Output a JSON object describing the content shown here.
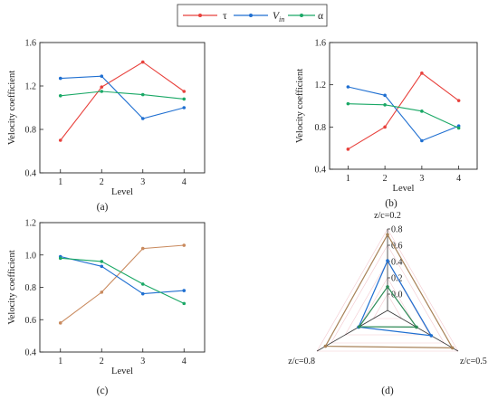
{
  "legend": {
    "items": [
      {
        "label": "τ",
        "color": "#e8413c"
      },
      {
        "label": "V",
        "sub": "in",
        "color": "#1f6fd1"
      },
      {
        "label": "α",
        "color": "#1aa866"
      }
    ]
  },
  "chart_data": [
    {
      "type": "line",
      "panel_label": "(a)",
      "xlabel": "Level",
      "ylabel": "Velocity coefficient",
      "x": [
        1,
        2,
        3,
        4
      ],
      "ylim": [
        0.4,
        1.6
      ],
      "yticks": [
        0.4,
        0.8,
        1.2,
        1.6
      ],
      "series": [
        {
          "name": "τ",
          "color": "#e8413c",
          "values": [
            0.7,
            1.19,
            1.42,
            1.15
          ]
        },
        {
          "name": "Vin",
          "color": "#1f6fd1",
          "values": [
            1.27,
            1.29,
            0.9,
            1.0
          ]
        },
        {
          "name": "α",
          "color": "#1aa866",
          "values": [
            1.11,
            1.15,
            1.12,
            1.08
          ]
        }
      ]
    },
    {
      "type": "line",
      "panel_label": "(b)",
      "xlabel": "Level",
      "ylabel": "Velocity coefficient",
      "x": [
        1,
        2,
        3,
        4
      ],
      "ylim": [
        0.4,
        1.6
      ],
      "yticks": [
        0.4,
        0.8,
        1.2,
        1.6
      ],
      "series": [
        {
          "name": "τ",
          "color": "#e8413c",
          "values": [
            0.59,
            0.8,
            1.31,
            1.05
          ]
        },
        {
          "name": "Vin",
          "color": "#1f6fd1",
          "values": [
            1.18,
            1.1,
            0.67,
            0.81
          ]
        },
        {
          "name": "α",
          "color": "#1aa866",
          "values": [
            1.02,
            1.01,
            0.95,
            0.79
          ]
        }
      ]
    },
    {
      "type": "line",
      "panel_label": "(c)",
      "xlabel": "Level",
      "ylabel": "Velocity coefficient",
      "x": [
        1,
        2,
        3,
        4
      ],
      "ylim": [
        0.4,
        1.2
      ],
      "yticks": [
        0.4,
        0.6,
        0.8,
        1.0,
        1.2
      ],
      "series": [
        {
          "name": "τ",
          "color": "#c98a5e",
          "values": [
            0.58,
            0.77,
            1.04,
            1.06
          ]
        },
        {
          "name": "Vin",
          "color": "#1f6fd1",
          "values": [
            0.99,
            0.93,
            0.76,
            0.78
          ]
        },
        {
          "name": "α",
          "color": "#1aa866",
          "values": [
            0.98,
            0.96,
            0.82,
            0.7
          ]
        }
      ]
    },
    {
      "type": "radar",
      "panel_label": "(d)",
      "axes": [
        "z/c=0.2",
        "z/c=0.5",
        "z/c=0.8"
      ],
      "rticks": [
        0.0,
        0.2,
        0.4,
        0.6,
        0.8
      ],
      "rrange": [
        -0.2,
        0.8
      ],
      "series": [
        {
          "name": "τ",
          "color": "#a88258",
          "values": [
            0.73,
            0.72,
            0.68
          ]
        },
        {
          "name": "Vin",
          "color": "#1f6fd1",
          "values": [
            0.41,
            0.42,
            0.21
          ]
        },
        {
          "name": "α",
          "color": "#2e8b57",
          "values": [
            0.09,
            0.21,
            0.2
          ]
        }
      ]
    }
  ]
}
